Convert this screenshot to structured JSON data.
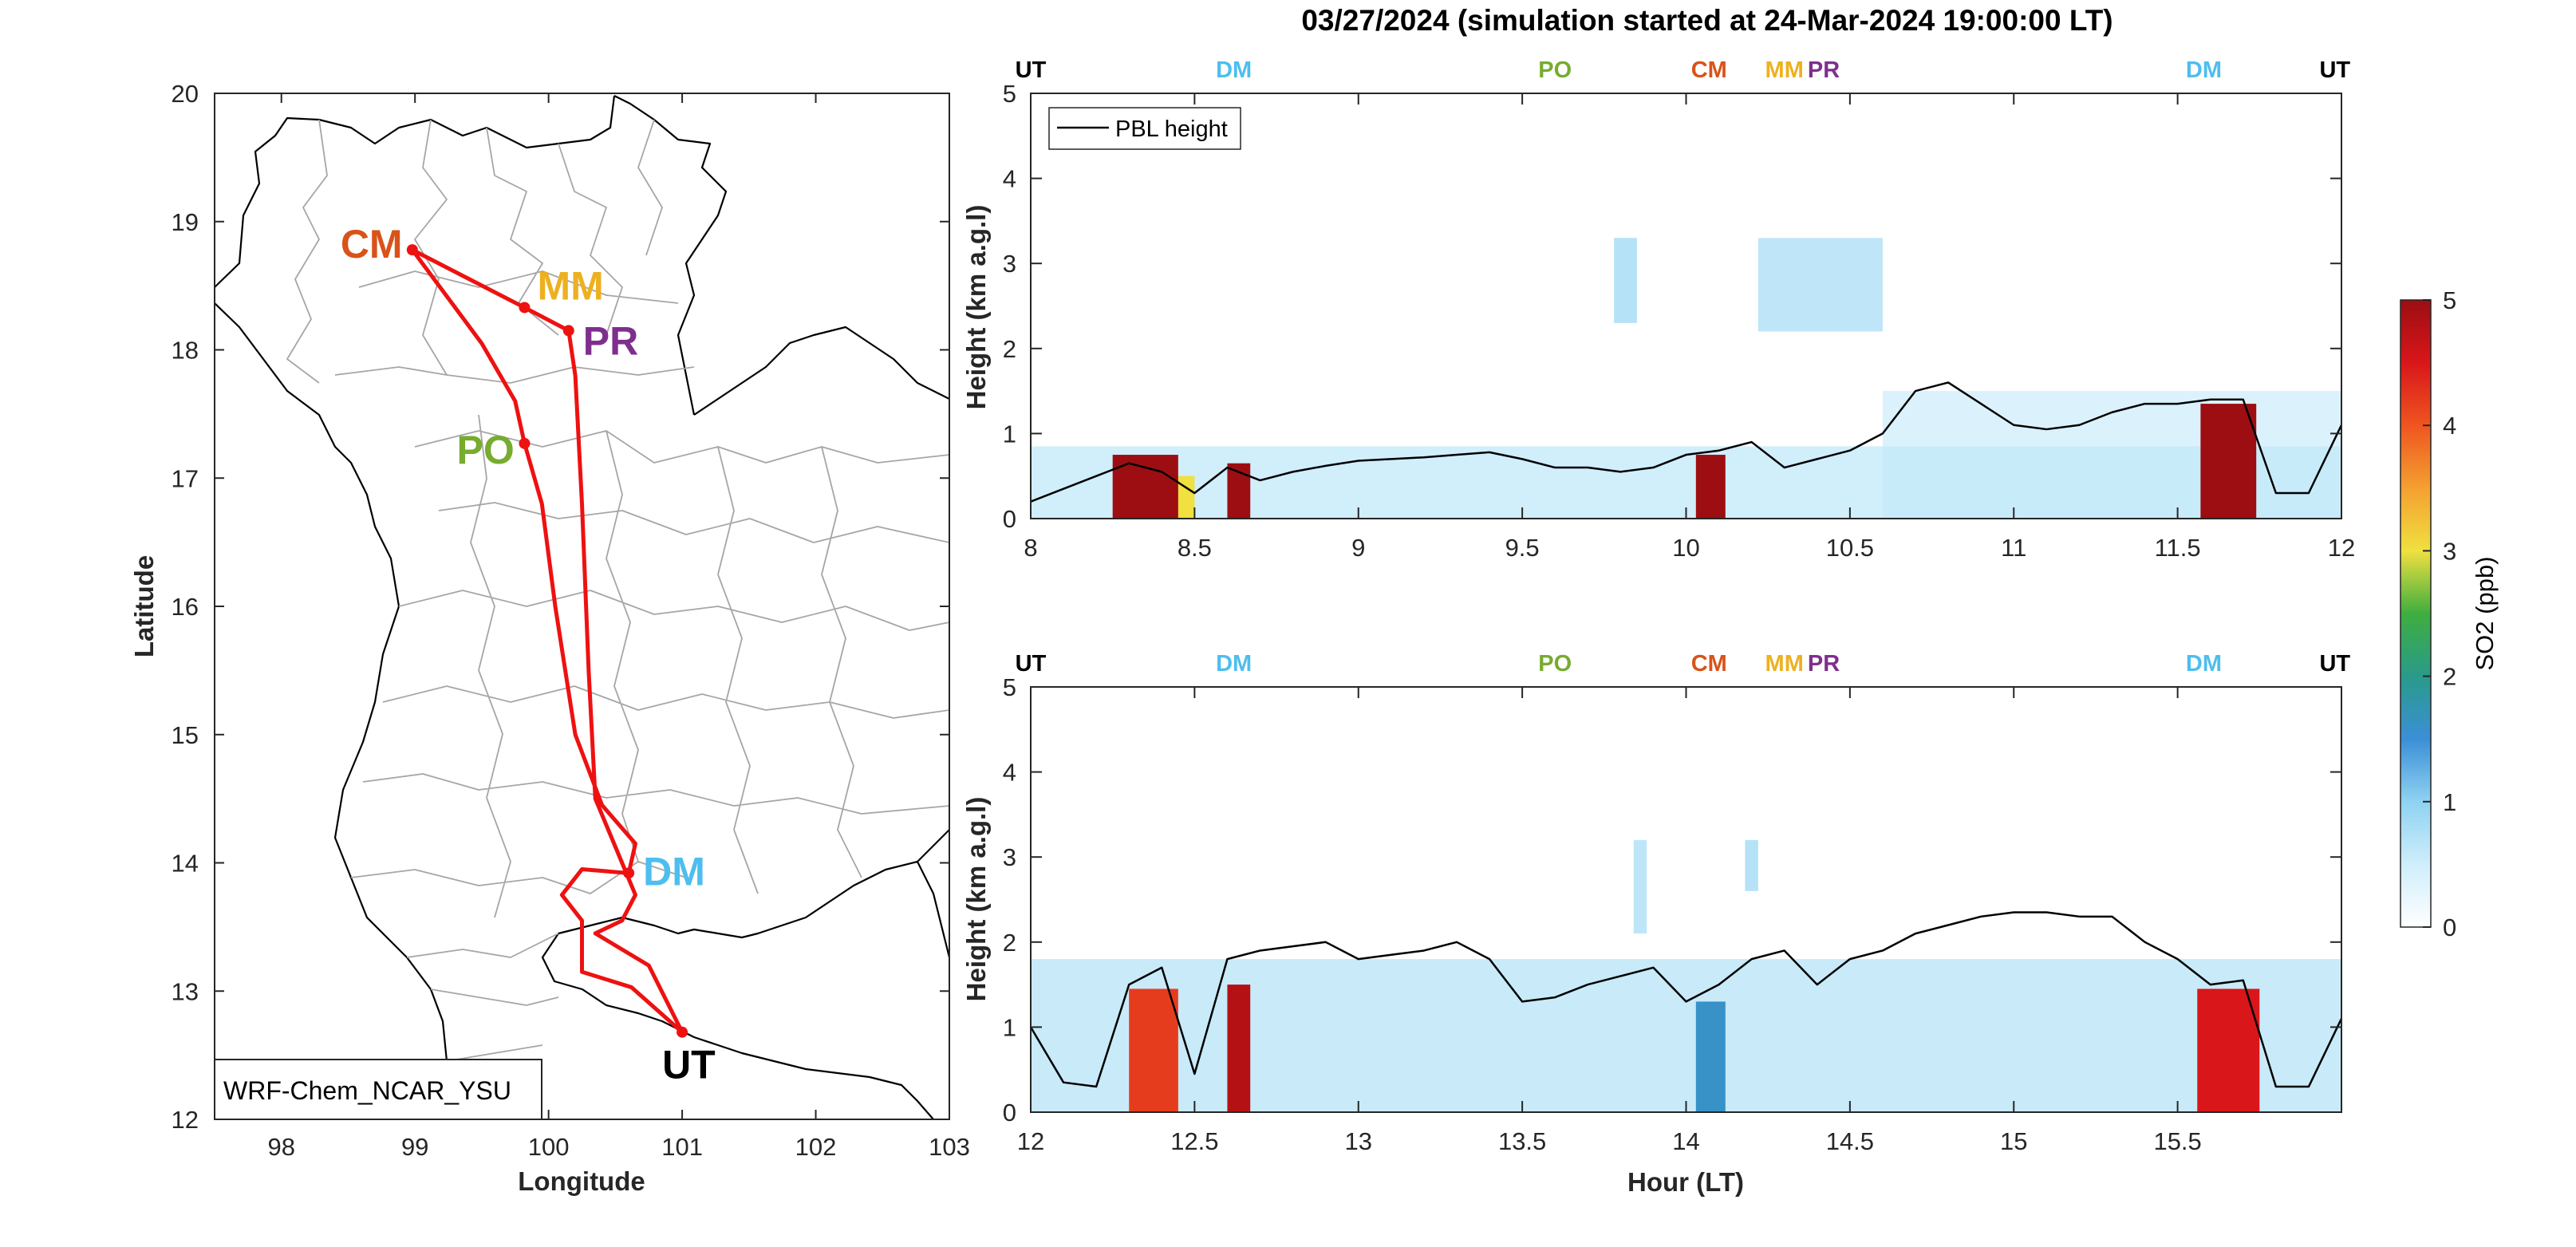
{
  "figure": {
    "title": "03/27/2024 (simulation started at 24-Mar-2024 19:00:00 LT)"
  },
  "colors": {
    "CM": "#d95319",
    "MM": "#edb120",
    "PR": "#7e2f8e",
    "PO": "#77ac30",
    "DM": "#4dbeee",
    "UT": "#000000",
    "route": "#ee1111",
    "pbl": "#000000"
  },
  "chart_data": [
    {
      "type": "map",
      "xlabel": "Longitude",
      "ylabel": "Latitude",
      "xlim": [
        97.5,
        103
      ],
      "ylim": [
        12,
        20
      ],
      "xticks": [
        98,
        99,
        100,
        101,
        102,
        103
      ],
      "yticks": [
        12,
        13,
        14,
        15,
        16,
        17,
        18,
        19,
        20
      ],
      "annotation": "WRF-Chem_NCAR_YSU",
      "cities": [
        {
          "name": "CM",
          "lon": 98.98,
          "lat": 18.78
        },
        {
          "name": "MM",
          "lon": 99.82,
          "lat": 18.33
        },
        {
          "name": "PR",
          "lon": 100.15,
          "lat": 18.15
        },
        {
          "name": "PO",
          "lon": 99.82,
          "lat": 17.27
        },
        {
          "name": "DM",
          "lon": 100.6,
          "lat": 13.92
        },
        {
          "name": "UT",
          "lon": 101.0,
          "lat": 12.68
        }
      ],
      "route": [
        [
          101.0,
          12.68
        ],
        [
          100.62,
          13.03
        ],
        [
          100.25,
          13.15
        ],
        [
          100.25,
          13.55
        ],
        [
          100.1,
          13.75
        ],
        [
          100.25,
          13.95
        ],
        [
          100.6,
          13.92
        ],
        [
          100.65,
          14.15
        ],
        [
          100.4,
          14.45
        ],
        [
          100.2,
          15.0
        ],
        [
          100.05,
          16.0
        ],
        [
          99.95,
          16.8
        ],
        [
          99.82,
          17.27
        ],
        [
          99.75,
          17.6
        ],
        [
          99.5,
          18.05
        ],
        [
          98.98,
          18.78
        ],
        [
          99.82,
          18.33
        ],
        [
          100.15,
          18.15
        ],
        [
          100.2,
          17.8
        ],
        [
          100.25,
          16.8
        ],
        [
          100.3,
          15.5
        ],
        [
          100.35,
          14.5
        ],
        [
          100.55,
          14.0
        ],
        [
          100.65,
          13.75
        ],
        [
          100.55,
          13.55
        ],
        [
          100.35,
          13.45
        ],
        [
          100.75,
          13.2
        ],
        [
          101.0,
          12.68
        ]
      ]
    },
    {
      "type": "heatmap",
      "panel": "top",
      "xlabel": "",
      "ylabel": "Height (km a.g.l)",
      "xlim": [
        8,
        12
      ],
      "ylim": [
        0,
        5
      ],
      "xticks": [
        8,
        8.5,
        9,
        9.5,
        10,
        10.5,
        11,
        11.5,
        12
      ],
      "yticks": [
        0,
        1,
        2,
        3,
        4,
        5
      ],
      "legend": "PBL height",
      "legend_position": "top-left",
      "location_markers": [
        {
          "label": "UT",
          "x": 8.0
        },
        {
          "label": "DM",
          "x": 8.62
        },
        {
          "label": "PO",
          "x": 9.6
        },
        {
          "label": "CM",
          "x": 10.07
        },
        {
          "label": "MM",
          "x": 10.3
        },
        {
          "label": "PR",
          "x": 10.42
        },
        {
          "label": "DM",
          "x": 11.58
        },
        {
          "label": "UT",
          "x": 11.98
        }
      ],
      "pbl_height": {
        "x": [
          8.0,
          8.1,
          8.2,
          8.3,
          8.4,
          8.5,
          8.6,
          8.7,
          8.8,
          8.9,
          9.0,
          9.1,
          9.2,
          9.3,
          9.4,
          9.5,
          9.6,
          9.7,
          9.8,
          9.9,
          10.0,
          10.1,
          10.2,
          10.3,
          10.4,
          10.5,
          10.6,
          10.7,
          10.8,
          10.9,
          11.0,
          11.1,
          11.2,
          11.3,
          11.4,
          11.5,
          11.6,
          11.7,
          11.8,
          11.9,
          12.0
        ],
        "y": [
          0.2,
          0.35,
          0.5,
          0.65,
          0.55,
          0.3,
          0.6,
          0.45,
          0.55,
          0.62,
          0.68,
          0.7,
          0.72,
          0.75,
          0.78,
          0.7,
          0.6,
          0.6,
          0.55,
          0.6,
          0.75,
          0.8,
          0.9,
          0.6,
          0.7,
          0.8,
          1.0,
          1.5,
          1.6,
          1.35,
          1.1,
          1.05,
          1.1,
          1.25,
          1.35,
          1.35,
          1.4,
          1.4,
          0.3,
          0.3,
          1.1
        ]
      },
      "so2_patches": [
        {
          "x0": 8.25,
          "x1": 8.45,
          "y0": 0.0,
          "y1": 0.75,
          "value": 5.0
        },
        {
          "x0": 8.3,
          "x1": 8.5,
          "y0": 0.0,
          "y1": 0.5,
          "value": 3.0
        },
        {
          "x0": 8.6,
          "x1": 8.67,
          "y0": 0.0,
          "y1": 0.65,
          "value": 5.0
        },
        {
          "x0": 10.03,
          "x1": 10.12,
          "y0": 0.0,
          "y1": 0.75,
          "value": 5.0
        },
        {
          "x0": 11.57,
          "x1": 11.74,
          "y0": 0.0,
          "y1": 1.35,
          "value": 5.0
        },
        {
          "x0": 8.0,
          "x1": 12.0,
          "y0": 0.0,
          "y1": 0.85,
          "value": 0.6
        },
        {
          "x0": 9.78,
          "x1": 9.85,
          "y0": 2.3,
          "y1": 3.3,
          "value": 0.9
        },
        {
          "x0": 10.22,
          "x1": 10.6,
          "y0": 2.2,
          "y1": 3.3,
          "value": 0.8
        },
        {
          "x0": 10.6,
          "x1": 12.0,
          "y0": 0.0,
          "y1": 1.5,
          "value": 0.5
        }
      ]
    },
    {
      "type": "heatmap",
      "panel": "bottom",
      "xlabel": "Hour (LT)",
      "ylabel": "Height (km a.g.l)",
      "xlim": [
        12,
        16
      ],
      "ylim": [
        0,
        5
      ],
      "xticks": [
        12,
        12.5,
        13,
        13.5,
        14,
        14.5,
        15,
        15.5
      ],
      "yticks": [
        0,
        1,
        2,
        3,
        4,
        5
      ],
      "location_markers": [
        {
          "label": "UT",
          "x": 12.0
        },
        {
          "label": "DM",
          "x": 12.62
        },
        {
          "label": "PO",
          "x": 13.6
        },
        {
          "label": "CM",
          "x": 14.07
        },
        {
          "label": "MM",
          "x": 14.3
        },
        {
          "label": "PR",
          "x": 14.42
        },
        {
          "label": "DM",
          "x": 15.58
        },
        {
          "label": "UT",
          "x": 15.98
        }
      ],
      "pbl_height": {
        "x": [
          12.0,
          12.1,
          12.2,
          12.3,
          12.4,
          12.5,
          12.6,
          12.7,
          12.8,
          12.9,
          13.0,
          13.1,
          13.2,
          13.3,
          13.4,
          13.5,
          13.6,
          13.7,
          13.8,
          13.9,
          14.0,
          14.1,
          14.2,
          14.3,
          14.4,
          14.5,
          14.6,
          14.7,
          14.8,
          14.9,
          15.0,
          15.1,
          15.2,
          15.3,
          15.4,
          15.5,
          15.6,
          15.7,
          15.8,
          15.9,
          16.0
        ],
        "y": [
          1.0,
          0.35,
          0.3,
          1.5,
          1.7,
          0.45,
          1.8,
          1.9,
          1.95,
          2.0,
          1.8,
          1.85,
          1.9,
          2.0,
          1.8,
          1.3,
          1.35,
          1.5,
          1.6,
          1.7,
          1.3,
          1.5,
          1.8,
          1.9,
          1.5,
          1.8,
          1.9,
          2.1,
          2.2,
          2.3,
          2.35,
          2.35,
          2.3,
          2.3,
          2.0,
          1.8,
          1.5,
          1.55,
          0.3,
          0.3,
          1.1
        ]
      },
      "so2_patches": [
        {
          "x0": 12.3,
          "x1": 12.45,
          "y0": 0.0,
          "y1": 1.45,
          "value": 4.2
        },
        {
          "x0": 12.35,
          "x1": 12.45,
          "y0": 0.0,
          "y1": 1.1,
          "value": 3.5
        },
        {
          "x0": 12.6,
          "x1": 12.67,
          "y0": 0.0,
          "y1": 1.5,
          "value": 4.8
        },
        {
          "x0": 14.03,
          "x1": 14.12,
          "y0": 0.0,
          "y1": 1.3,
          "value": 1.6
        },
        {
          "x0": 15.56,
          "x1": 15.75,
          "y0": 0.0,
          "y1": 1.45,
          "value": 4.5
        },
        {
          "x0": 12.0,
          "x1": 16.0,
          "y0": 0.0,
          "y1": 1.8,
          "value": 0.7
        },
        {
          "x0": 13.84,
          "x1": 13.88,
          "y0": 2.1,
          "y1": 3.2,
          "value": 0.8
        },
        {
          "x0": 14.18,
          "x1": 14.22,
          "y0": 2.6,
          "y1": 3.2,
          "value": 0.9
        }
      ]
    },
    {
      "type": "colorbar",
      "label": "SO2 (ppb)",
      "range": [
        0,
        5
      ],
      "ticks": [
        0,
        1,
        2,
        3,
        4,
        5
      ]
    }
  ]
}
